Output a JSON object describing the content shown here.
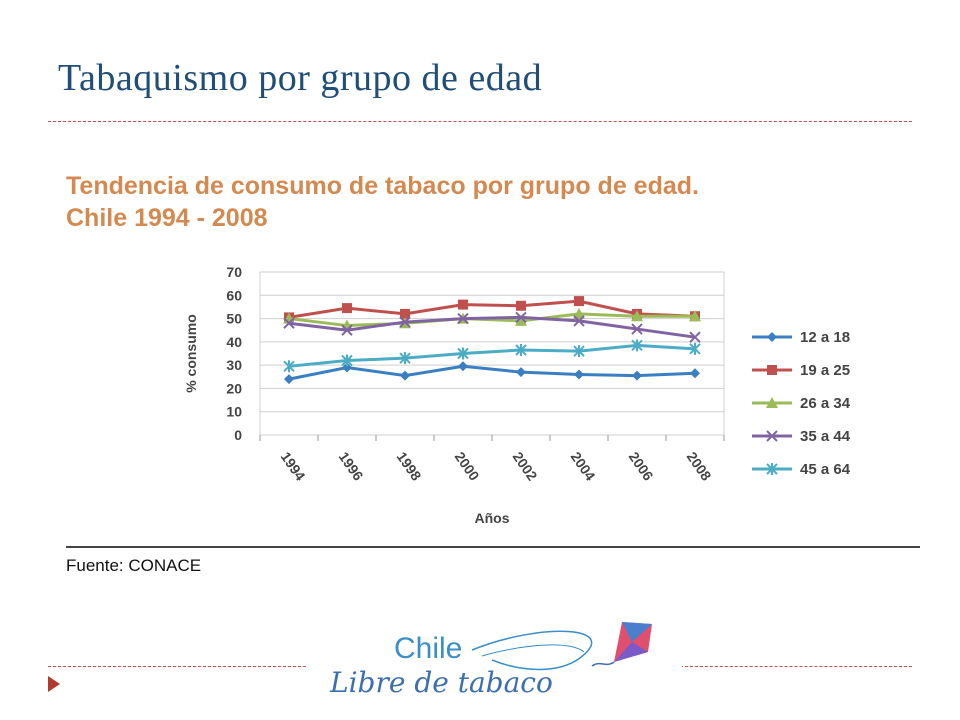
{
  "slide": {
    "title": "Tabaquismo por grupo de edad"
  },
  "chart_heading": {
    "line1": "Tendencia de consumo de tabaco por grupo de edad.",
    "line2": "Chile 1994 - 2008"
  },
  "source": "Fuente: CONACE",
  "logo": {
    "line1": "Chile",
    "line2": "Libre de tabaco"
  },
  "colors": {
    "title": "#1f4e79",
    "heading": "#d3894f",
    "divider": "#c0504d"
  },
  "chart_data": {
    "type": "line",
    "xlabel": "Años",
    "ylabel": "% consumo",
    "ylim": [
      0,
      70
    ],
    "yticks": [
      0,
      10,
      20,
      30,
      40,
      50,
      60,
      70
    ],
    "grid": true,
    "legend_position": "right",
    "categories": [
      "1994",
      "1996",
      "1998",
      "2000",
      "2002",
      "2004",
      "2006",
      "2008"
    ],
    "series": [
      {
        "name": "12 a 18",
        "color": "#3a7fc1",
        "marker": "diamond",
        "values": [
          24,
          29,
          25.5,
          29.5,
          27,
          26,
          25.5,
          26.5
        ]
      },
      {
        "name": "19 a 25",
        "color": "#c0504d",
        "marker": "square",
        "values": [
          50.5,
          54.5,
          52,
          56,
          55.5,
          57.5,
          52,
          51
        ]
      },
      {
        "name": "26 a 34",
        "color": "#9bbb59",
        "marker": "triangle",
        "values": [
          50,
          47,
          48,
          50,
          49,
          52,
          51,
          51
        ]
      },
      {
        "name": "35 a 44",
        "color": "#8064a2",
        "marker": "x",
        "values": [
          48,
          45,
          48.5,
          50,
          50.5,
          49,
          45.5,
          42
        ]
      },
      {
        "name": "45 a 64",
        "color": "#4bacc6",
        "marker": "star",
        "values": [
          29.5,
          32,
          33,
          35,
          36.5,
          36,
          38.5,
          37
        ]
      }
    ]
  }
}
